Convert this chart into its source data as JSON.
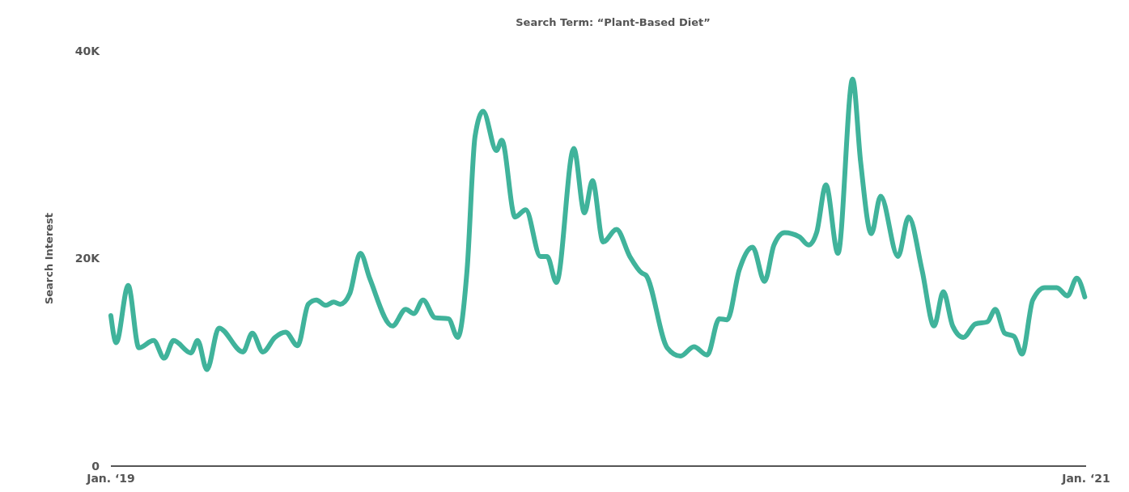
{
  "chart_data": {
    "type": "line",
    "title": "Search Term: “Plant-Based Diet”",
    "ylabel": "Search Interest",
    "x": [
      "2019-01-01",
      "2019-01-05",
      "2019-01-14",
      "2019-01-22",
      "2019-02-02",
      "2019-02-10",
      "2019-02-17",
      "2019-03-02",
      "2019-03-07",
      "2019-03-14",
      "2019-03-23",
      "2019-04-10",
      "2019-04-17",
      "2019-04-25",
      "2019-05-04",
      "2019-05-12",
      "2019-05-21",
      "2019-05-29",
      "2019-06-04",
      "2019-06-11",
      "2019-06-17",
      "2019-06-22",
      "2019-06-29",
      "2019-07-07",
      "2019-07-14",
      "2019-07-31",
      "2019-08-10",
      "2019-08-16",
      "2019-08-23",
      "2019-09-01",
      "2019-09-11",
      "2019-09-18",
      "2019-09-25",
      "2019-10-01",
      "2019-10-07",
      "2019-10-17",
      "2019-10-21",
      "2019-10-31",
      "2019-11-08",
      "2019-11-19",
      "2019-11-24",
      "2019-12-01",
      "2019-12-14",
      "2019-12-22",
      "2019-12-28",
      "2020-01-05",
      "2020-01-15",
      "2020-01-25",
      "2020-02-03",
      "2020-02-06",
      "2020-02-22",
      "2020-03-03",
      "2020-03-13",
      "2020-03-23",
      "2020-04-01",
      "2020-04-07",
      "2020-04-16",
      "2020-04-26",
      "2020-05-05",
      "2020-05-12",
      "2020-05-20",
      "2020-05-31",
      "2020-06-07",
      "2020-06-13",
      "2020-06-20",
      "2020-06-29",
      "2020-07-10",
      "2020-07-16",
      "2020-07-24",
      "2020-07-31",
      "2020-08-13",
      "2020-08-21",
      "2020-08-31",
      "2020-09-09",
      "2020-09-16",
      "2020-09-23",
      "2020-10-01",
      "2020-10-10",
      "2020-10-19",
      "2020-10-25",
      "2020-11-01",
      "2020-11-08",
      "2020-11-14",
      "2020-11-22",
      "2020-12-01",
      "2020-12-10",
      "2020-12-18",
      "2020-12-25",
      "2020-12-31"
    ],
    "series": [
      {
        "color": "#40b39b",
        "values": [
          14500,
          11900,
          17400,
          11400,
          12100,
          10400,
          12100,
          10900,
          12100,
          9300,
          13300,
          11000,
          12800,
          11000,
          12400,
          12900,
          11600,
          15600,
          16000,
          15500,
          15800,
          15600,
          16600,
          20500,
          18100,
          13500,
          15100,
          14700,
          16000,
          14300,
          14200,
          12400,
          18900,
          31800,
          34200,
          30400,
          31400,
          24000,
          24700,
          20200,
          20200,
          17700,
          30600,
          24400,
          27500,
          21600,
          22800,
          20200,
          18600,
          18400,
          11400,
          10600,
          11500,
          10700,
          14200,
          14100,
          18900,
          21100,
          17800,
          21300,
          22500,
          22100,
          21300,
          22500,
          27100,
          20500,
          37300,
          29300,
          22400,
          26000,
          20200,
          24000,
          18900,
          13500,
          16800,
          13500,
          12400,
          13700,
          13900,
          15100,
          12800,
          12500,
          10800,
          16000,
          17200,
          17200,
          16400,
          18100,
          16300
        ]
      }
    ],
    "xlim": [
      "2019-01-01",
      "2021-01-01"
    ],
    "xticks": [
      {
        "value": "2019-01-01",
        "label": "Jan. ‘19"
      },
      {
        "value": "2021-01-01",
        "label": "Jan. ‘21"
      }
    ],
    "ylim": [
      0,
      40000
    ],
    "yticks": [
      0,
      {
        "value": 20000,
        "label": "20K"
      },
      {
        "value": 40000,
        "label": "40K"
      }
    ],
    "grid": false,
    "marker": "none",
    "line_style": "solid"
  }
}
